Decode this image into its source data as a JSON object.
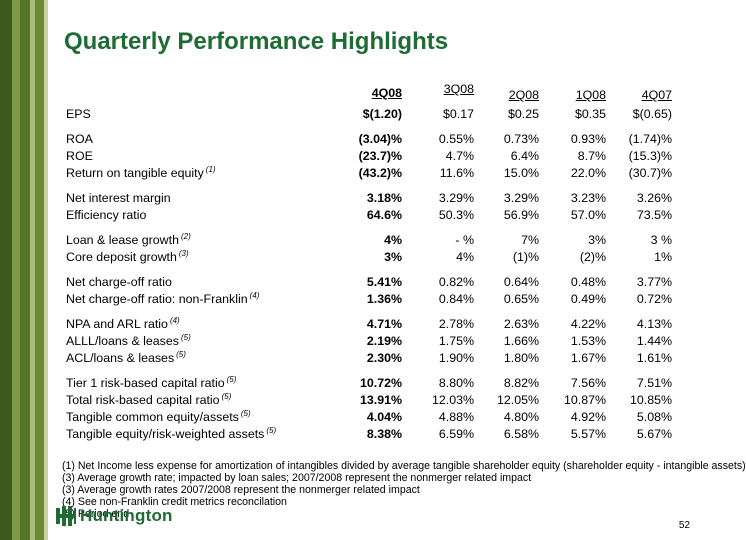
{
  "title": "Quarterly Performance Highlights",
  "columns": [
    "4Q08",
    "3Q08",
    "2Q08",
    "1Q08",
    "4Q07"
  ],
  "rows": [
    {
      "label": "EPS",
      "fn": "",
      "values": [
        "$(1.20)",
        "$0.17",
        "$0.25",
        "$0.35",
        "$(0.65)"
      ]
    },
    {
      "label": "ROA",
      "fn": "",
      "gap": true,
      "values": [
        "(3.04)%",
        "0.55%",
        "0.73%",
        "0.93%",
        "(1.74)%"
      ]
    },
    {
      "label": "ROE",
      "fn": "",
      "values": [
        "(23.7)%",
        "4.7%",
        "6.4%",
        "8.7%",
        "(15.3)%"
      ]
    },
    {
      "label": "Return on tangible equity",
      "fn": "(1)",
      "values": [
        "(43.2)%",
        "11.6%",
        "15.0%",
        "22.0%",
        "(30.7)%"
      ]
    },
    {
      "label": "Net interest margin",
      "fn": "",
      "gap": true,
      "values": [
        "3.18%",
        "3.29%",
        "3.29%",
        "3.23%",
        "3.26%"
      ]
    },
    {
      "label": "Efficiency ratio",
      "fn": "",
      "values": [
        "64.6%",
        "50.3%",
        "56.9%",
        "57.0%",
        "73.5%"
      ]
    },
    {
      "label": "Loan & lease growth",
      "fn": "(2)",
      "gap": true,
      "values": [
        "4%",
        "- %",
        "7%",
        "3%",
        "3 %"
      ]
    },
    {
      "label": "Core deposit growth",
      "fn": "(3)",
      "values": [
        "3%",
        "4%",
        "(1)%",
        "(2)%",
        "1%"
      ]
    },
    {
      "label": "Net charge-off ratio",
      "fn": "",
      "gap": true,
      "values": [
        "5.41%",
        "0.82%",
        "0.64%",
        "0.48%",
        "3.77%"
      ]
    },
    {
      "label": "Net charge-off ratio: non-Franklin",
      "fn": "(4)",
      "values": [
        "1.36%",
        "0.84%",
        "0.65%",
        "0.49%",
        "0.72%"
      ]
    },
    {
      "label": "NPA and ARL ratio",
      "fn": "(4)",
      "gap": true,
      "values": [
        "4.71%",
        "2.78%",
        "2.63%",
        "4.22%",
        "4.13%"
      ]
    },
    {
      "label": "ALLL/loans & leases",
      "fn": "(5)",
      "values": [
        "2.19%",
        "1.75%",
        "1.66%",
        "1.53%",
        "1.44%"
      ]
    },
    {
      "label": "ACL/loans & leases",
      "fn": "(5)",
      "values": [
        "2.30%",
        "1.90%",
        "1.80%",
        "1.67%",
        "1.61%"
      ]
    },
    {
      "label": "Tier 1 risk-based capital ratio",
      "fn": "(5)",
      "gap": true,
      "values": [
        "10.72%",
        "8.80%",
        "8.82%",
        "7.56%",
        "7.51%"
      ]
    },
    {
      "label": "Total risk-based capital ratio",
      "fn": "(5)",
      "values": [
        "13.91%",
        "12.03%",
        "12.05%",
        "10.87%",
        "10.85%"
      ]
    },
    {
      "label": "Tangible common equity/assets",
      "fn": "(5)",
      "values": [
        "4.04%",
        "4.88%",
        "4.80%",
        "4.92%",
        "5.08%"
      ]
    },
    {
      "label": "Tangible equity/risk-weighted assets",
      "fn": "(5)",
      "values": [
        "8.38%",
        "6.59%",
        "6.58%",
        "5.57%",
        "5.67%"
      ]
    }
  ],
  "footnotes": [
    "(1) Net Income less expense for amortization of intangibles divided by average tangible shareholder equity (shareholder equity - intangible assets)",
    "(3) Average growth rate; impacted by loan sales; 2007/2008 represent the nonmerger related impact",
    "(3) Average growth rates 2007/2008 represent the nonmerger related impact",
    "(4) See non-Franklin credit metrics reconcilation",
    "(5) Period end"
  ],
  "logo_text": "Huntington",
  "page_number": "52",
  "colors": {
    "brand_green": "#1e6b35",
    "stripe_olive": "#5d7a2c",
    "stripe_light": "#9bb26a"
  }
}
